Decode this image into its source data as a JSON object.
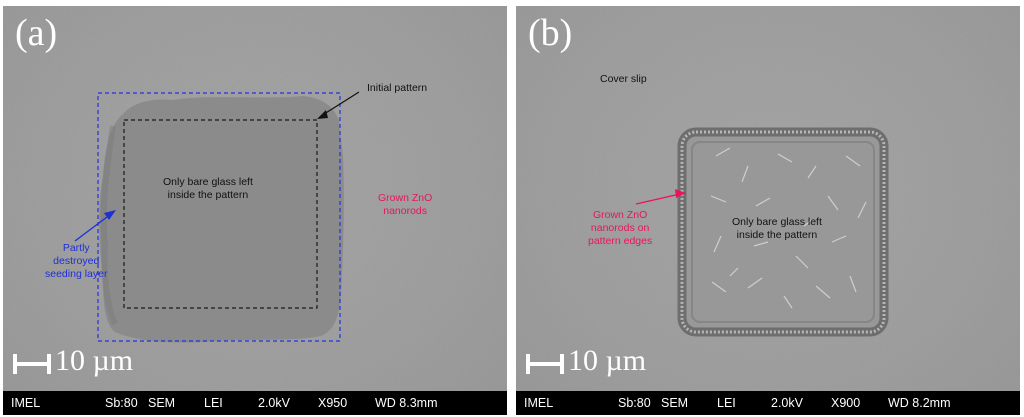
{
  "panel_a": {
    "label": "(a)",
    "scale_text": "10 µm",
    "annotations": {
      "initial_pattern": "Initial pattern",
      "bare_glass_line1": "Only bare glass left",
      "bare_glass_line2": "inside the pattern",
      "grown_zno_line1": "Grown ZnO",
      "grown_zno_line2": "nanorods",
      "seed_line1": "Partly",
      "seed_line2": "destroyed",
      "seed_line3": "seeding layer"
    },
    "infobar": {
      "lab": "IMEL",
      "sb": "Sb:80",
      "mode": "SEM",
      "detector": "LEI",
      "voltage": "2.0kV",
      "magnification": "X950",
      "wd": "WD 8.3mm"
    }
  },
  "panel_b": {
    "label": "(b)",
    "scale_text": "10 µm",
    "annotations": {
      "cover_slip": "Cover slip",
      "bare_glass_line1": "Only bare glass left",
      "bare_glass_line2": "inside the pattern",
      "grown_zno_line1": "Grown ZnO",
      "grown_zno_line2": "nanorods on",
      "grown_zno_line3": "pattern edges"
    },
    "infobar": {
      "lab": "IMEL",
      "sb": "Sb:80",
      "mode": "SEM",
      "detector": "LEI",
      "voltage": "2.0kV",
      "magnification": "X900",
      "wd": "WD 8.2mm"
    }
  },
  "colors": {
    "pink_annotation": "#e8155a",
    "blue_annotation": "#1e2fd8",
    "background_gray": "#9e9e9e",
    "pattern_gray": "#8c8c8c"
  }
}
